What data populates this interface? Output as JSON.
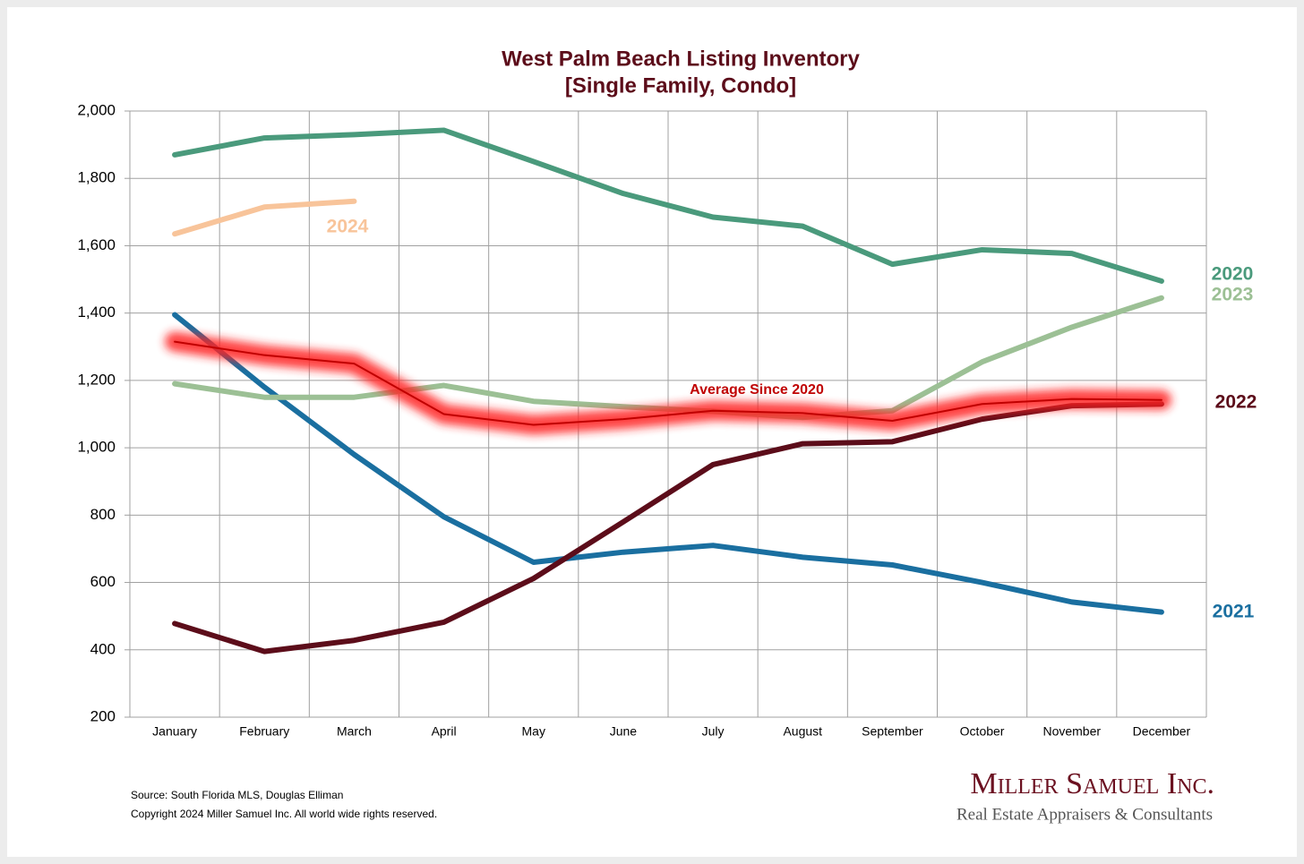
{
  "chart_data": {
    "type": "line",
    "title": "West Palm Beach Listing Inventory",
    "subtitle": "[Single Family, Condo]",
    "categories": [
      "January",
      "February",
      "March",
      "April",
      "May",
      "June",
      "July",
      "August",
      "September",
      "October",
      "November",
      "December"
    ],
    "ylim": [
      200,
      2000
    ],
    "yticks": [
      200,
      400,
      600,
      800,
      {
        "value": 1000,
        "label": "1,000"
      },
      {
        "value": 1200,
        "label": "1,200"
      },
      {
        "value": 1400,
        "label": "1,400"
      },
      {
        "value": 1600,
        "label": "1,600"
      },
      {
        "value": 1800,
        "label": "1,800"
      },
      {
        "value": 2000,
        "label": "2,000"
      }
    ],
    "grid": true,
    "series": [
      {
        "name": "2020",
        "color": "#4a9a7c",
        "values": [
          1870,
          1920,
          1930,
          1943,
          1850,
          1755,
          1685,
          1658,
          1545,
          1588,
          1577,
          1495
        ]
      },
      {
        "name": "2021",
        "color": "#1a6fa0",
        "values": [
          1395,
          1180,
          980,
          795,
          660,
          690,
          710,
          675,
          652,
          600,
          542,
          512
        ]
      },
      {
        "name": "2022",
        "color": "#5c0d1a",
        "values": [
          478,
          395,
          428,
          482,
          612,
          780,
          950,
          1012,
          1018,
          1085,
          1125,
          1130
        ]
      },
      {
        "name": "2023",
        "color": "#9cc095",
        "values": [
          1190,
          1150,
          1150,
          1185,
          1138,
          1122,
          1108,
          1090,
          1110,
          1255,
          1358,
          1445
        ]
      },
      {
        "name": "2024",
        "color": "#f8c49a",
        "values": [
          1635,
          1715,
          1732,
          null,
          null,
          null,
          null,
          null,
          null,
          null,
          null,
          null
        ]
      },
      {
        "name": "Average  Since 2020",
        "color": "#c00000",
        "glow": true,
        "values": [
          1315,
          1275,
          1250,
          1100,
          1068,
          1085,
          1110,
          1103,
          1080,
          1130,
          1145,
          1142
        ]
      }
    ],
    "source": "Source: South Florida MLS, Douglas Elliman",
    "copyright": "Copyright 2024 Miller Samuel Inc.  All world wide rights reserved.",
    "brand": "Miller Samuel Inc.",
    "tagline": "Real Estate Appraisers & Consultants"
  }
}
